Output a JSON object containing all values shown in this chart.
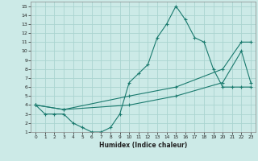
{
  "background_color": "#cceae7",
  "grid_color": "#aad4d0",
  "line_color": "#1a7a6e",
  "xlim": [
    -0.5,
    23.5
  ],
  "ylim": [
    1,
    15.5
  ],
  "xticks": [
    0,
    1,
    2,
    3,
    4,
    5,
    6,
    7,
    8,
    9,
    10,
    11,
    12,
    13,
    14,
    15,
    16,
    17,
    18,
    19,
    20,
    21,
    22,
    23
  ],
  "yticks": [
    1,
    2,
    3,
    4,
    5,
    6,
    7,
    8,
    9,
    10,
    11,
    12,
    13,
    14,
    15
  ],
  "xlabel": "Humidex (Indice chaleur)",
  "line1_x": [
    0,
    1,
    2,
    3,
    4,
    5,
    6,
    7,
    8,
    9,
    10,
    11,
    12,
    13,
    14,
    15,
    16,
    17,
    18,
    19,
    20,
    21,
    22,
    23
  ],
  "line1_y": [
    4,
    3,
    3,
    3,
    2,
    1.5,
    1,
    1,
    1.5,
    3,
    6.5,
    7.5,
    8.5,
    11.5,
    13,
    15,
    13.5,
    11.5,
    11,
    8,
    6,
    6,
    6,
    6
  ],
  "line2_x": [
    0,
    3,
    10,
    15,
    20,
    22,
    23
  ],
  "line2_y": [
    4,
    3.5,
    5,
    6,
    8,
    11,
    11
  ],
  "line3_x": [
    0,
    3,
    10,
    15,
    20,
    22,
    23
  ],
  "line3_y": [
    4,
    3.5,
    4,
    5,
    6.5,
    10,
    6.5
  ]
}
